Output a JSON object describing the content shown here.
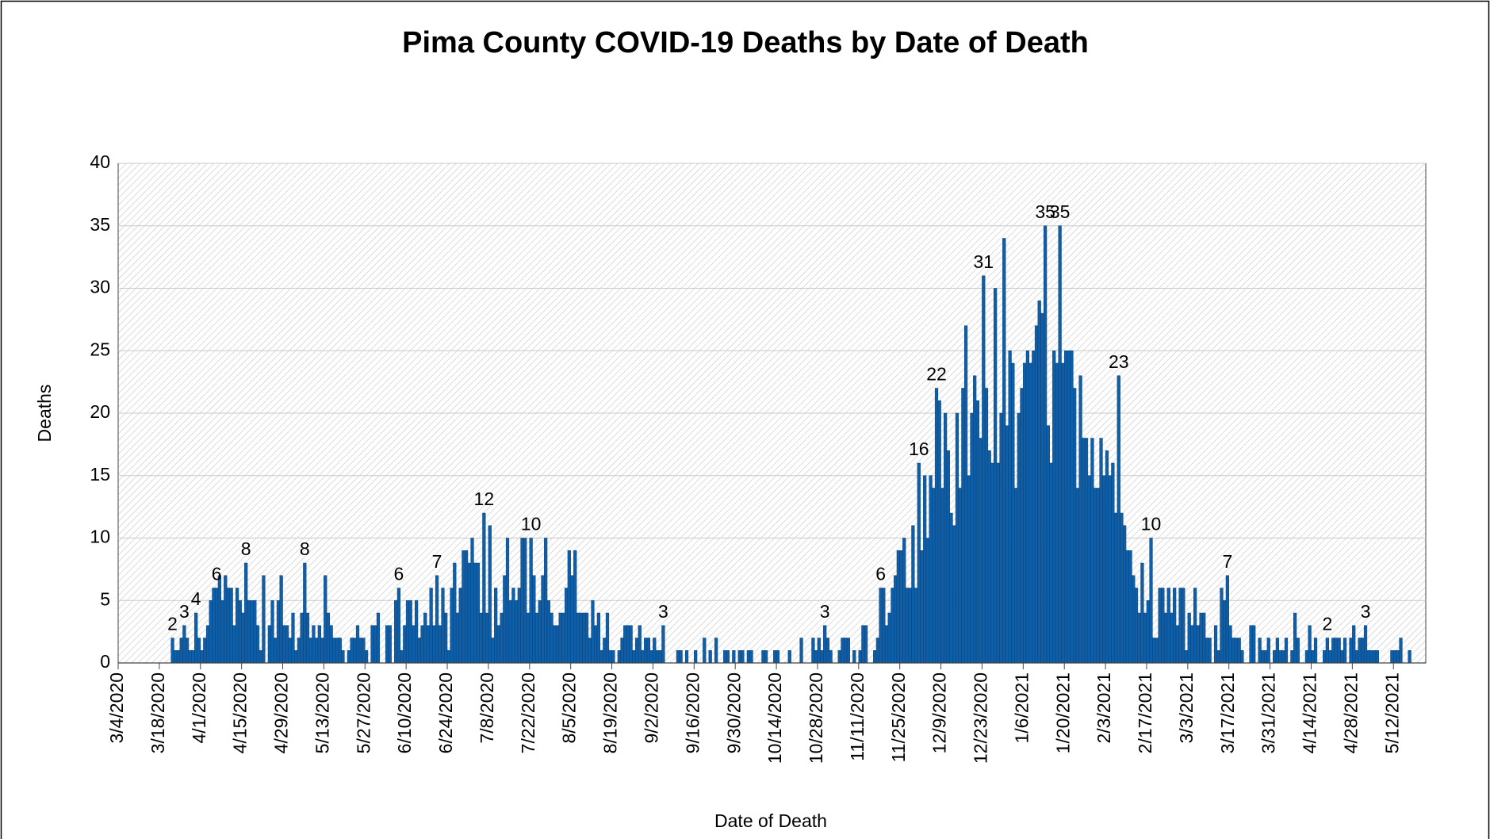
{
  "chart_data": {
    "type": "bar",
    "title": "Pima County COVID-19 Deaths by Date of Death",
    "x_label": "Date of Death",
    "y_label": "Deaths",
    "color": "#0f5fa8",
    "ylim": [
      0,
      40
    ],
    "yticks": [
      0,
      5,
      10,
      15,
      20,
      25,
      30,
      35,
      40
    ],
    "grid": true,
    "categories": [
      "3/4/2020",
      null,
      null,
      null,
      null,
      null,
      null,
      null,
      null,
      null,
      null,
      null,
      null,
      null,
      "3/18/2020",
      null,
      null,
      null,
      null,
      null,
      null,
      null,
      null,
      null,
      null,
      null,
      null,
      null,
      "4/1/2020",
      null,
      null,
      null,
      null,
      null,
      null,
      null,
      null,
      null,
      null,
      null,
      null,
      null,
      "4/15/2020",
      null,
      null,
      null,
      null,
      null,
      null,
      null,
      null,
      null,
      null,
      null,
      null,
      null,
      "4/29/2020",
      null,
      null,
      null,
      null,
      null,
      null,
      null,
      null,
      null,
      null,
      null,
      null,
      null,
      "5/13/2020",
      null,
      null,
      null,
      null,
      null,
      null,
      null,
      null,
      null,
      null,
      null,
      null,
      null,
      "5/27/2020",
      null,
      null,
      null,
      null,
      null,
      null,
      null,
      null,
      null,
      null,
      null,
      null,
      null,
      "6/10/2020",
      null,
      null,
      null,
      null,
      null,
      null,
      null,
      null,
      null,
      null,
      null,
      null,
      null,
      "6/24/2020",
      null,
      null,
      null,
      null,
      null,
      null,
      null,
      null,
      null,
      null,
      null,
      null,
      null,
      "7/8/2020",
      null,
      null,
      null,
      null,
      null,
      null,
      null,
      null,
      null,
      null,
      null,
      null,
      null,
      "7/22/2020",
      null,
      null,
      null,
      null,
      null,
      null,
      null,
      null,
      null,
      null,
      null,
      null,
      null,
      "8/5/2020",
      null,
      null,
      null,
      null,
      null,
      null,
      null,
      null,
      null,
      null,
      null,
      null,
      null,
      "8/19/2020",
      null,
      null,
      null,
      null,
      null,
      null,
      null,
      null,
      null,
      null,
      null,
      null,
      null,
      "9/2/2020",
      null,
      null,
      null,
      null,
      null,
      null,
      null,
      null,
      null,
      null,
      null,
      null,
      null,
      "9/16/2020",
      null,
      null,
      null,
      null,
      null,
      null,
      null,
      null,
      null,
      null,
      null,
      null,
      null,
      "9/30/2020",
      null,
      null,
      null,
      null,
      null,
      null,
      null,
      null,
      null,
      null,
      null,
      null,
      null,
      "10/14/2020",
      null,
      null,
      null,
      null,
      null,
      null,
      null,
      null,
      null,
      null,
      null,
      null,
      null,
      "10/28/2020",
      null,
      null,
      null,
      null,
      null,
      null,
      null,
      null,
      null,
      null,
      null,
      null,
      null,
      "11/11/2020",
      null,
      null,
      null,
      null,
      null,
      null,
      null,
      null,
      null,
      null,
      null,
      null,
      null,
      "11/25/2020",
      null,
      null,
      null,
      null,
      null,
      null,
      null,
      null,
      null,
      null,
      null,
      null,
      null,
      "12/9/2020",
      null,
      null,
      null,
      null,
      null,
      null,
      null,
      null,
      null,
      null,
      null,
      null,
      null,
      "12/23/2020",
      null,
      null,
      null,
      null,
      null,
      null,
      null,
      null,
      null,
      null,
      null,
      null,
      null,
      "1/6/2021",
      null,
      null,
      null,
      null,
      null,
      null,
      null,
      null,
      null,
      null,
      null,
      null,
      null,
      "1/20/2021",
      null,
      null,
      null,
      null,
      null,
      null,
      null,
      null,
      null,
      null,
      null,
      null,
      null,
      "2/3/2021",
      null,
      null,
      null,
      null,
      null,
      null,
      null,
      null,
      null,
      null,
      null,
      null,
      null,
      "2/17/2021",
      null,
      null,
      null,
      null,
      null,
      null,
      null,
      null,
      null,
      null,
      null,
      null,
      null,
      "3/3/2021",
      null,
      null,
      null,
      null,
      null,
      null,
      null,
      null,
      null,
      null,
      null,
      null,
      null,
      "3/17/2021",
      null,
      null,
      null,
      null,
      null,
      null,
      null,
      null,
      null,
      null,
      null,
      null,
      null,
      "3/31/2021",
      null,
      null,
      null,
      null,
      null,
      null,
      null,
      null,
      null,
      null,
      null,
      null,
      null,
      "4/14/2021",
      null,
      null,
      null,
      null,
      null,
      null,
      null,
      null,
      null,
      null,
      null,
      null,
      null,
      "4/28/2021",
      null,
      null,
      null,
      null,
      null,
      null,
      null,
      null,
      null,
      null,
      null,
      null,
      null,
      "5/12/2021",
      null,
      null,
      null,
      null,
      null,
      null,
      null,
      null,
      null,
      null
    ],
    "values": [
      0,
      0,
      0,
      0,
      0,
      0,
      0,
      0,
      0,
      0,
      0,
      0,
      0,
      0,
      0,
      0,
      0,
      0,
      2,
      1,
      1,
      2,
      3,
      2,
      1,
      1,
      4,
      2,
      1,
      2,
      3,
      5,
      6,
      6,
      7,
      5,
      7,
      6,
      6,
      3,
      6,
      5,
      4,
      8,
      5,
      5,
      5,
      3,
      1,
      7,
      0,
      3,
      5,
      2,
      5,
      7,
      3,
      3,
      2,
      4,
      1,
      2,
      4,
      8,
      4,
      2,
      3,
      2,
      3,
      2,
      7,
      4,
      3,
      2,
      2,
      2,
      1,
      0,
      1,
      2,
      2,
      3,
      2,
      2,
      1,
      0,
      3,
      3,
      4,
      0,
      0,
      3,
      3,
      0,
      5,
      6,
      1,
      3,
      5,
      5,
      3,
      5,
      2,
      3,
      4,
      3,
      6,
      3,
      7,
      3,
      6,
      4,
      1,
      6,
      8,
      4,
      6,
      9,
      9,
      8,
      10,
      8,
      8,
      4,
      12,
      4,
      11,
      2,
      6,
      3,
      4,
      7,
      10,
      5,
      6,
      5,
      6,
      10,
      10,
      4,
      10,
      7,
      4,
      5,
      7,
      10,
      5,
      4,
      3,
      3,
      4,
      4,
      6,
      9,
      7,
      9,
      4,
      4,
      4,
      4,
      2,
      5,
      3,
      4,
      1,
      2,
      4,
      1,
      1,
      0,
      1,
      2,
      3,
      3,
      3,
      1,
      2,
      3,
      1,
      2,
      2,
      1,
      2,
      1,
      1,
      3,
      0,
      0,
      0,
      0,
      1,
      1,
      0,
      1,
      0,
      0,
      1,
      0,
      0,
      2,
      0,
      1,
      0,
      2,
      0,
      0,
      1,
      1,
      0,
      1,
      0,
      1,
      1,
      0,
      1,
      1,
      0,
      0,
      0,
      1,
      1,
      0,
      0,
      1,
      1,
      0,
      0,
      0,
      1,
      0,
      0,
      0,
      2,
      0,
      0,
      0,
      2,
      1,
      2,
      1,
      3,
      2,
      1,
      0,
      0,
      1,
      2,
      2,
      2,
      0,
      1,
      0,
      1,
      3,
      3,
      0,
      0,
      1,
      2,
      6,
      6,
      3,
      4,
      6,
      7,
      9,
      9,
      10,
      6,
      6,
      11,
      6,
      16,
      9,
      15,
      10,
      15,
      14,
      22,
      21,
      14,
      20,
      17,
      12,
      11,
      20,
      14,
      22,
      27,
      15,
      20,
      23,
      21,
      18,
      31,
      22,
      17,
      16,
      30,
      16,
      20,
      34,
      19,
      25,
      24,
      14,
      20,
      22,
      24,
      25,
      24,
      25,
      27,
      29,
      28,
      35,
      19,
      16,
      25,
      24,
      35,
      24,
      25,
      25,
      25,
      22,
      14,
      23,
      18,
      18,
      15,
      18,
      14,
      14,
      18,
      15,
      17,
      15,
      16,
      12,
      23,
      12,
      11,
      9,
      9,
      7,
      6,
      4,
      8,
      4,
      5,
      10,
      2,
      2,
      6,
      6,
      4,
      6,
      4,
      6,
      3,
      6,
      6,
      1,
      4,
      3,
      6,
      3,
      4,
      4,
      2,
      2,
      0,
      3,
      1,
      6,
      5,
      7,
      3,
      2,
      2,
      2,
      1,
      0,
      0,
      3,
      3,
      0,
      2,
      1,
      1,
      2,
      0,
      1,
      2,
      1,
      1,
      2,
      0,
      1,
      4,
      2,
      0,
      0,
      1,
      3,
      1,
      2,
      0,
      0,
      1,
      2,
      1,
      2,
      2,
      2,
      1,
      2,
      0,
      2,
      3,
      1,
      2,
      2,
      3,
      1,
      1,
      1,
      1,
      0,
      0,
      0,
      0,
      1,
      1,
      1,
      2,
      0,
      0,
      1,
      0,
      0,
      0,
      0,
      0
    ],
    "value_labels": [
      null,
      null,
      null,
      null,
      null,
      null,
      null,
      null,
      null,
      null,
      null,
      null,
      null,
      null,
      null,
      null,
      null,
      null,
      2,
      null,
      null,
      null,
      3,
      null,
      null,
      null,
      4,
      null,
      null,
      null,
      null,
      null,
      null,
      6,
      null,
      null,
      null,
      null,
      null,
      null,
      null,
      null,
      null,
      8,
      null,
      null,
      null,
      null,
      null,
      null,
      null,
      null,
      null,
      null,
      null,
      null,
      null,
      null,
      null,
      null,
      null,
      null,
      null,
      8,
      null,
      null,
      null,
      null,
      null,
      null,
      null,
      null,
      null,
      null,
      null,
      null,
      null,
      null,
      null,
      null,
      null,
      null,
      null,
      null,
      null,
      null,
      null,
      null,
      null,
      null,
      null,
      null,
      null,
      null,
      null,
      6,
      null,
      null,
      null,
      null,
      null,
      null,
      null,
      null,
      null,
      null,
      null,
      null,
      7,
      null,
      null,
      null,
      null,
      null,
      null,
      null,
      null,
      null,
      null,
      null,
      null,
      null,
      null,
      null,
      12,
      null,
      null,
      null,
      null,
      null,
      null,
      null,
      null,
      null,
      null,
      null,
      null,
      null,
      null,
      null,
      10,
      null,
      null,
      null,
      null,
      null,
      null,
      null,
      null,
      null,
      null,
      null,
      null,
      null,
      null,
      null,
      null,
      null,
      null,
      null,
      null,
      null,
      null,
      null,
      null,
      null,
      null,
      null,
      null,
      null,
      null,
      null,
      null,
      null,
      null,
      null,
      null,
      null,
      null,
      null,
      null,
      null,
      null,
      null,
      null,
      3,
      null,
      null,
      null,
      null,
      null,
      null,
      null,
      null,
      null,
      null,
      null,
      null,
      null,
      null,
      null,
      null,
      null,
      null,
      null,
      null,
      null,
      null,
      null,
      null,
      null,
      null,
      null,
      null,
      null,
      null,
      null,
      null,
      null,
      null,
      null,
      null,
      null,
      null,
      null,
      null,
      null,
      null,
      null,
      null,
      null,
      null,
      null,
      null,
      null,
      null,
      null,
      null,
      null,
      null,
      3,
      null,
      null,
      null,
      null,
      null,
      null,
      null,
      null,
      null,
      null,
      null,
      null,
      null,
      null,
      null,
      null,
      null,
      null,
      6,
      null,
      null,
      null,
      null,
      null,
      null,
      null,
      null,
      null,
      null,
      null,
      null,
      16,
      null,
      null,
      null,
      null,
      null,
      22,
      null,
      null,
      null,
      null,
      null,
      null,
      null,
      null,
      null,
      null,
      null,
      null,
      null,
      null,
      null,
      31,
      null,
      null,
      null,
      null,
      null,
      null,
      null,
      null,
      null,
      null,
      null,
      null,
      null,
      null,
      null,
      null,
      null,
      null,
      null,
      null,
      35,
      null,
      null,
      null,
      null,
      35,
      null,
      null,
      null,
      null,
      null,
      null,
      null,
      null,
      null,
      null,
      null,
      null,
      null,
      null,
      null,
      null,
      null,
      null,
      null,
      23,
      null,
      null,
      null,
      null,
      null,
      null,
      null,
      null,
      null,
      null,
      10,
      null,
      null,
      null,
      null,
      null,
      null,
      null,
      null,
      null,
      null,
      null,
      null,
      null,
      null,
      null,
      null,
      null,
      null,
      null,
      null,
      null,
      null,
      null,
      null,
      null,
      7,
      null,
      null,
      null,
      null,
      null,
      null,
      null,
      null,
      null,
      null,
      null,
      null,
      null,
      null,
      null,
      null,
      null,
      null,
      null,
      null,
      null,
      null,
      null,
      null,
      null,
      null,
      null,
      null,
      null,
      null,
      null,
      null,
      null,
      2,
      null,
      null,
      null,
      null,
      null,
      null,
      null,
      null,
      null,
      null,
      null,
      null,
      3,
      null,
      null,
      null,
      null,
      null,
      null,
      null,
      null,
      null,
      null,
      null,
      null,
      null,
      null,
      null,
      null,
      null,
      null,
      null,
      null
    ]
  }
}
